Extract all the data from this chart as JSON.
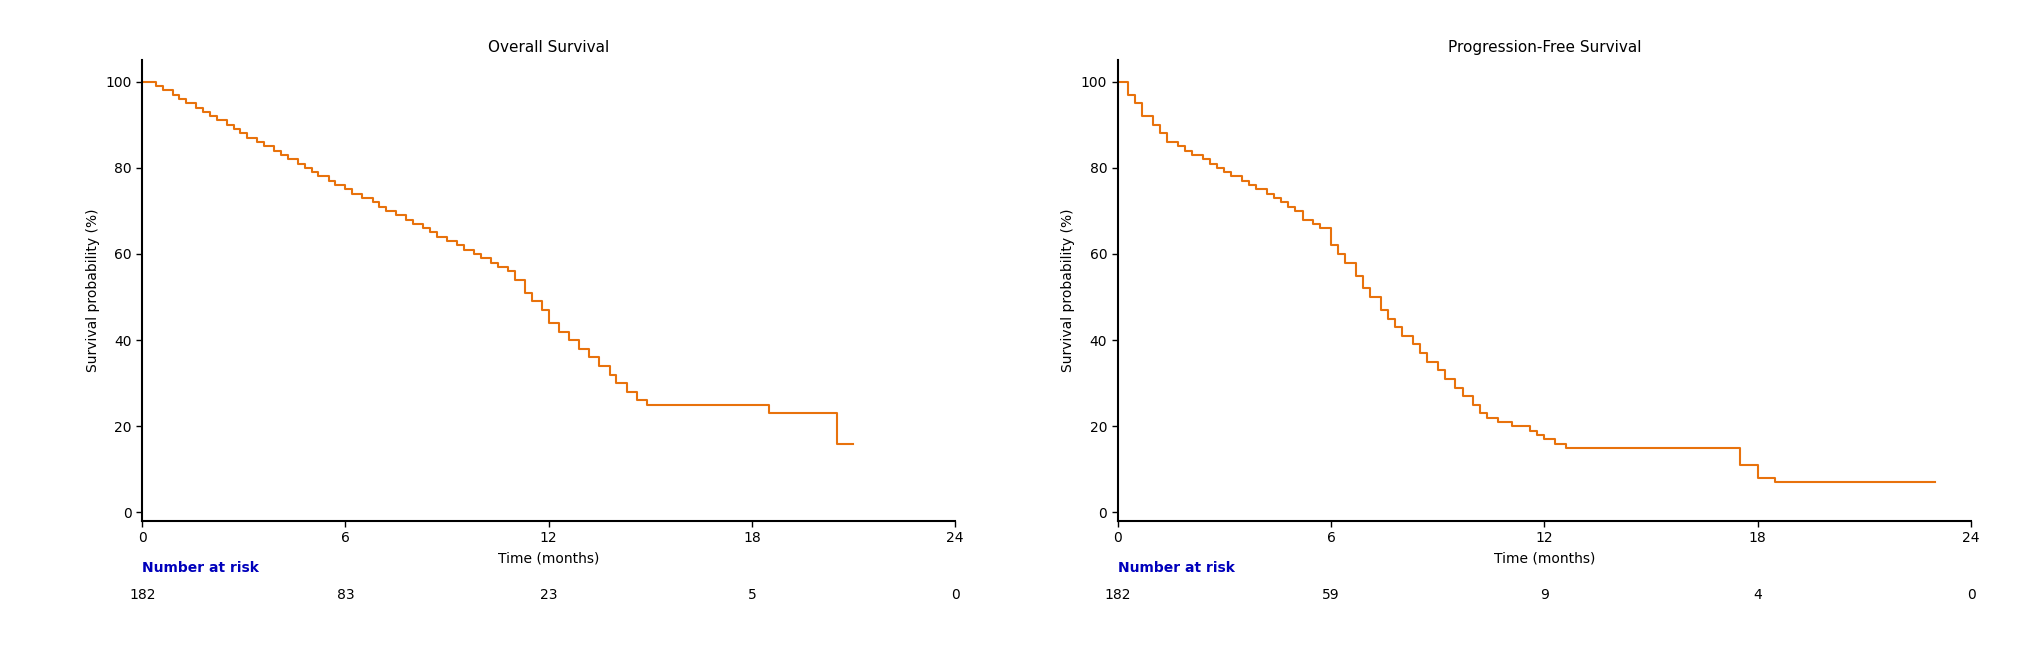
{
  "os_title": "Overall Survival",
  "pfs_title": "Progression-Free Survival",
  "ylabel": "Survival probability (%)",
  "xlabel": "Time (months)",
  "line_color": "#E8720C",
  "line_width": 1.5,
  "xlim": [
    0,
    24
  ],
  "ylim": [
    -2,
    105
  ],
  "yticks": [
    0,
    20,
    40,
    60,
    80,
    100
  ],
  "xticks": [
    0,
    6,
    12,
    18,
    24
  ],
  "risk_label": "Number at risk",
  "risk_label_color": "#0000BB",
  "os_risk_times": [
    0,
    6,
    12,
    18,
    24
  ],
  "os_risk_counts": [
    "182",
    "83",
    "23",
    "5",
    "0"
  ],
  "pfs_risk_times": [
    0,
    6,
    12,
    18,
    24
  ],
  "pfs_risk_counts": [
    "182",
    "59",
    "9",
    "4",
    "0"
  ],
  "os_times": [
    0,
    0.4,
    0.6,
    0.9,
    1.1,
    1.3,
    1.6,
    1.8,
    2.0,
    2.2,
    2.5,
    2.7,
    2.9,
    3.1,
    3.4,
    3.6,
    3.9,
    4.1,
    4.3,
    4.6,
    4.8,
    5.0,
    5.2,
    5.5,
    5.7,
    6.0,
    6.2,
    6.5,
    6.8,
    7.0,
    7.2,
    7.5,
    7.8,
    8.0,
    8.3,
    8.5,
    8.7,
    9.0,
    9.3,
    9.5,
    9.8,
    10.0,
    10.3,
    10.5,
    10.8,
    11.0,
    11.3,
    11.5,
    11.8,
    12.0,
    12.3,
    12.6,
    12.9,
    13.2,
    13.5,
    13.8,
    14.0,
    14.3,
    14.6,
    14.9,
    15.2,
    16.0,
    17.0,
    17.5,
    18.0,
    18.3,
    18.5,
    19.0,
    19.5,
    20.0,
    20.5,
    21.0
  ],
  "os_surv": [
    100,
    99,
    98,
    97,
    96,
    95,
    94,
    93,
    92,
    91,
    90,
    89,
    88,
    87,
    86,
    85,
    84,
    83,
    82,
    81,
    80,
    79,
    78,
    77,
    76,
    75,
    74,
    73,
    72,
    71,
    70,
    69,
    68,
    67,
    66,
    65,
    64,
    63,
    62,
    61,
    60,
    59,
    58,
    57,
    56,
    54,
    51,
    49,
    47,
    44,
    42,
    40,
    38,
    36,
    34,
    32,
    30,
    28,
    26,
    25,
    25,
    25,
    25,
    25,
    25,
    25,
    23,
    23,
    23,
    23,
    16,
    16
  ],
  "pfs_times": [
    0,
    0.3,
    0.5,
    0.7,
    1.0,
    1.2,
    1.4,
    1.7,
    1.9,
    2.1,
    2.4,
    2.6,
    2.8,
    3.0,
    3.2,
    3.5,
    3.7,
    3.9,
    4.2,
    4.4,
    4.6,
    4.8,
    5.0,
    5.2,
    5.5,
    5.7,
    6.0,
    6.2,
    6.4,
    6.7,
    6.9,
    7.1,
    7.4,
    7.6,
    7.8,
    8.0,
    8.3,
    8.5,
    8.7,
    9.0,
    9.2,
    9.5,
    9.7,
    10.0,
    10.2,
    10.4,
    10.7,
    10.9,
    11.1,
    11.4,
    11.6,
    11.8,
    12.0,
    12.3,
    12.6,
    13.0,
    13.5,
    14.0,
    14.5,
    15.0,
    15.5,
    16.0,
    16.5,
    17.0,
    17.5,
    18.0,
    18.5,
    19.0,
    19.5,
    20.0,
    20.5,
    21.0,
    22.0,
    23.0
  ],
  "pfs_surv": [
    100,
    97,
    95,
    92,
    90,
    88,
    86,
    85,
    84,
    83,
    82,
    81,
    80,
    79,
    78,
    77,
    76,
    75,
    74,
    73,
    72,
    71,
    70,
    68,
    67,
    66,
    62,
    60,
    58,
    55,
    52,
    50,
    47,
    45,
    43,
    41,
    39,
    37,
    35,
    33,
    31,
    29,
    27,
    25,
    23,
    22,
    21,
    21,
    20,
    20,
    19,
    18,
    17,
    16,
    15,
    15,
    15,
    15,
    15,
    15,
    15,
    15,
    15,
    15,
    11,
    8,
    7,
    7,
    7,
    7,
    7,
    7,
    7,
    7
  ],
  "title_fontsize": 11,
  "axis_label_fontsize": 10,
  "tick_fontsize": 10,
  "risk_fontsize": 10,
  "risk_bold_fontsize": 10
}
